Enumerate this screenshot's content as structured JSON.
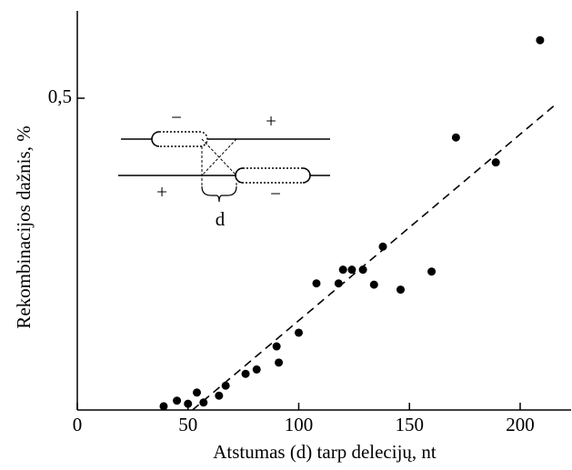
{
  "chart_data": {
    "type": "scatter",
    "xlabel": "Atstumas (d) tarp delecijų, nt",
    "ylabel": "Rekombinacijos dažnis, %",
    "xlim": [
      0,
      223
    ],
    "ylim": [
      0,
      0.64
    ],
    "xticks": [
      0,
      50,
      100,
      150,
      200
    ],
    "yticks": [
      {
        "value": 0.5,
        "label": "0,5"
      }
    ],
    "color": "#000000",
    "x": [
      39,
      45,
      50,
      54,
      57,
      64,
      67,
      76,
      81,
      90,
      91,
      100,
      108,
      118,
      120,
      124,
      129,
      134,
      138,
      146,
      160,
      171,
      189,
      209
    ],
    "y": [
      0.006,
      0.015,
      0.01,
      0.028,
      0.012,
      0.023,
      0.039,
      0.058,
      0.065,
      0.102,
      0.076,
      0.124,
      0.203,
      0.203,
      0.225,
      0.225,
      0.225,
      0.201,
      0.262,
      0.193,
      0.222,
      0.437,
      0.397,
      0.593
    ],
    "trend": {
      "x": [
        52,
        216
      ],
      "y": [
        0,
        0.49
      ]
    },
    "annotations": [
      "−",
      "+",
      "+",
      "−",
      "d"
    ]
  }
}
